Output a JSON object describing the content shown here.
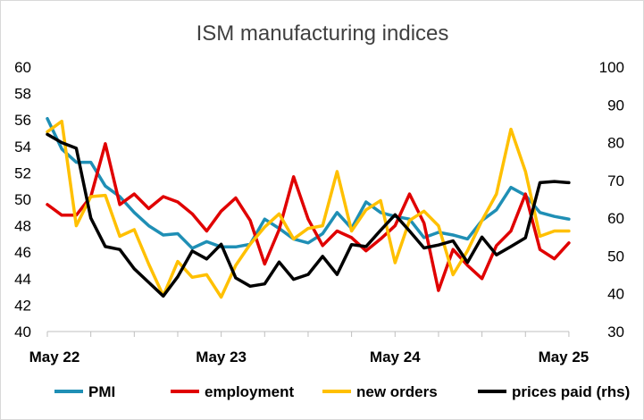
{
  "chart_data": {
    "type": "line",
    "title": "ISM manufacturing indices",
    "xlabel": "",
    "ylabel": "",
    "y2label": "",
    "x_tick_labels": [
      "May 22",
      "May 23",
      "May 24",
      "May 25"
    ],
    "x_tick_index": [
      0,
      12,
      24,
      36
    ],
    "ylim": [
      40,
      60
    ],
    "y_ticks": [
      "40",
      "42",
      "44",
      "46",
      "48",
      "50",
      "52",
      "54",
      "56",
      "58",
      "60"
    ],
    "y2lim": [
      30,
      100
    ],
    "y2_ticks": [
      "30",
      "40",
      "50",
      "60",
      "70",
      "80",
      "90",
      "100"
    ],
    "grid": false,
    "legend": "bottom",
    "series": [
      {
        "name": "PMI",
        "axis": "left",
        "color": "#1f8fb5",
        "values": [
          56.1,
          53.8,
          52.8,
          52.8,
          51.0,
          50.2,
          49.0,
          48.0,
          47.3,
          47.4,
          46.3,
          46.8,
          46.4,
          46.4,
          46.6,
          48.5,
          47.8,
          47.0,
          46.7,
          47.4,
          49.0,
          47.8,
          49.8,
          49.0,
          48.7,
          48.5,
          47.1,
          47.5,
          47.3,
          47.0,
          48.4,
          49.2,
          50.9,
          50.3,
          49.0,
          48.7,
          48.5
        ]
      },
      {
        "name": "employment",
        "axis": "left",
        "color": "#e00000",
        "values": [
          49.6,
          48.8,
          48.8,
          50.2,
          54.2,
          49.6,
          50.4,
          49.3,
          50.2,
          49.8,
          48.9,
          47.6,
          49.1,
          50.1,
          48.4,
          45.1,
          47.7,
          51.7,
          48.5,
          46.5,
          47.6,
          47.1,
          46.1,
          47.0,
          48.0,
          50.4,
          48.2,
          43.1,
          46.2,
          45.0,
          44.0,
          46.5,
          47.6,
          50.4,
          46.2,
          45.5,
          46.7
        ]
      },
      {
        "name": "new orders",
        "axis": "left",
        "color": "#ffc000",
        "values": [
          55.1,
          55.9,
          48.0,
          50.2,
          50.3,
          47.2,
          47.7,
          45.1,
          42.7,
          45.3,
          44.1,
          44.3,
          42.6,
          45.0,
          46.6,
          47.9,
          48.9,
          47.0,
          47.8,
          48.0,
          52.1,
          47.6,
          49.2,
          49.9,
          45.2,
          48.4,
          49.1,
          48.0,
          44.3,
          46.1,
          48.4,
          50.4,
          55.3,
          52.1,
          47.2,
          47.6,
          47.6
        ]
      },
      {
        "name": "prices paid (rhs)",
        "axis": "right",
        "color": "#000000",
        "values": [
          82.2,
          80.0,
          78.5,
          60.0,
          52.5,
          51.7,
          46.6,
          43.0,
          39.4,
          44.5,
          51.3,
          49.2,
          53.1,
          44.2,
          42.0,
          42.6,
          48.4,
          43.8,
          45.1,
          49.9,
          45.1,
          53.0,
          52.5,
          56.8,
          60.9,
          56.6,
          52.1,
          52.9,
          54.0,
          48.3,
          55.0,
          50.3,
          52.5,
          54.8,
          69.4,
          69.7,
          69.4
        ]
      }
    ]
  }
}
